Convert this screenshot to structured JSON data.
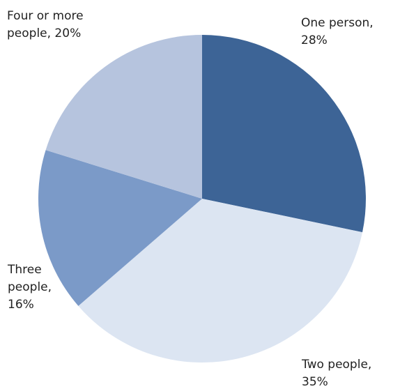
{
  "chart_data": {
    "type": "pie",
    "title": "",
    "start_angle_deg": 0,
    "direction": "clockwise",
    "slices": [
      {
        "label_lines": [
          "One person,",
          "28%"
        ],
        "category": "One person",
        "value": 28,
        "color": "#3d6496"
      },
      {
        "label_lines": [
          "Two  people,",
          "35%"
        ],
        "category": "Two people",
        "value": 35,
        "color": "#dce5f2"
      },
      {
        "label_lines": [
          "Three",
          "people,",
          "16%"
        ],
        "category": "Three people",
        "value": 16,
        "color": "#7b9ac8"
      },
      {
        "label_lines": [
          "Four or more",
          "people, 20%"
        ],
        "category": "Four or more people",
        "value": 20,
        "color": "#b6c4de"
      }
    ],
    "legend": "none",
    "data_labels": "outside"
  }
}
